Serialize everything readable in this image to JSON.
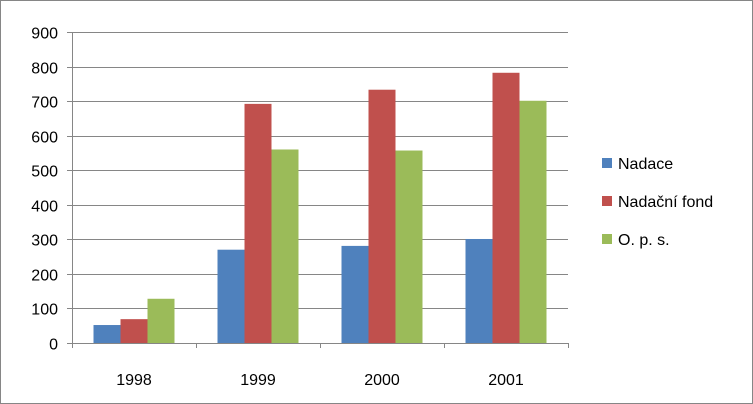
{
  "chart_data": {
    "type": "bar",
    "title": "",
    "xlabel": "",
    "ylabel": "",
    "categories": [
      "1998",
      "1999",
      "2000",
      "2001"
    ],
    "series": [
      {
        "name": "Nadace",
        "color": "#4F81BD",
        "values": [
          52,
          270,
          281,
          301
        ]
      },
      {
        "name": "Nadační fond",
        "color": "#C0504D",
        "values": [
          69,
          692,
          733,
          782
        ]
      },
      {
        "name": "O. p. s.",
        "color": "#9BBB59",
        "values": [
          128,
          560,
          557,
          701
        ]
      }
    ],
    "ylim": [
      0,
      900
    ],
    "yticks": [
      "0",
      "100",
      "200",
      "300",
      "400",
      "500",
      "600",
      "700",
      "800",
      "900"
    ],
    "grid": true,
    "legend": "right"
  }
}
